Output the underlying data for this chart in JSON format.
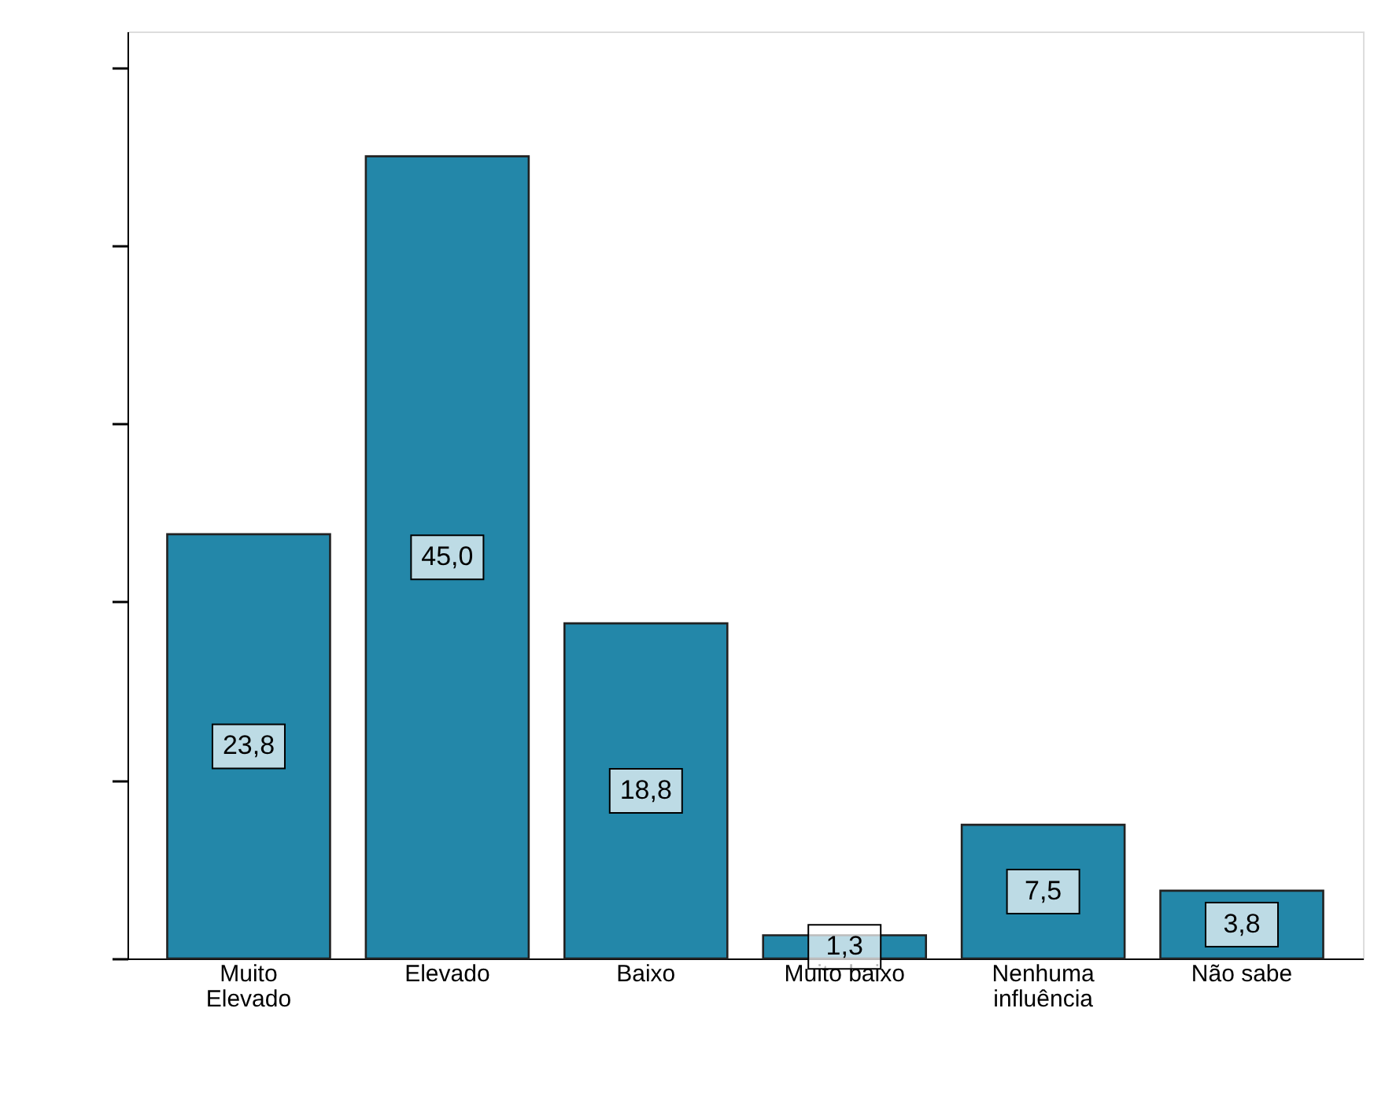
{
  "chart_data": {
    "type": "bar",
    "categories": [
      "Muito\nElevado",
      "Elevado",
      "Baixo",
      "Muito baixo",
      "Nenhuma\ninfluência",
      "Não sabe"
    ],
    "values": [
      23.8,
      45.0,
      18.8,
      1.3,
      7.5,
      3.8
    ],
    "value_labels": [
      "23,8",
      "45,0",
      "18,8",
      "1,3",
      "7,5",
      "3,8"
    ],
    "color": "#2387a9",
    "ylim": [
      0,
      52
    ],
    "yticks": [
      {
        "value": 0,
        "label": null
      },
      {
        "value": 10,
        "label": null
      },
      {
        "value": 20,
        "label": null
      },
      {
        "value": 30,
        "label": null
      },
      {
        "value": 40,
        "label": null
      },
      {
        "value": 50,
        "label": null
      }
    ],
    "tick_labels": "x",
    "grid": false
  }
}
